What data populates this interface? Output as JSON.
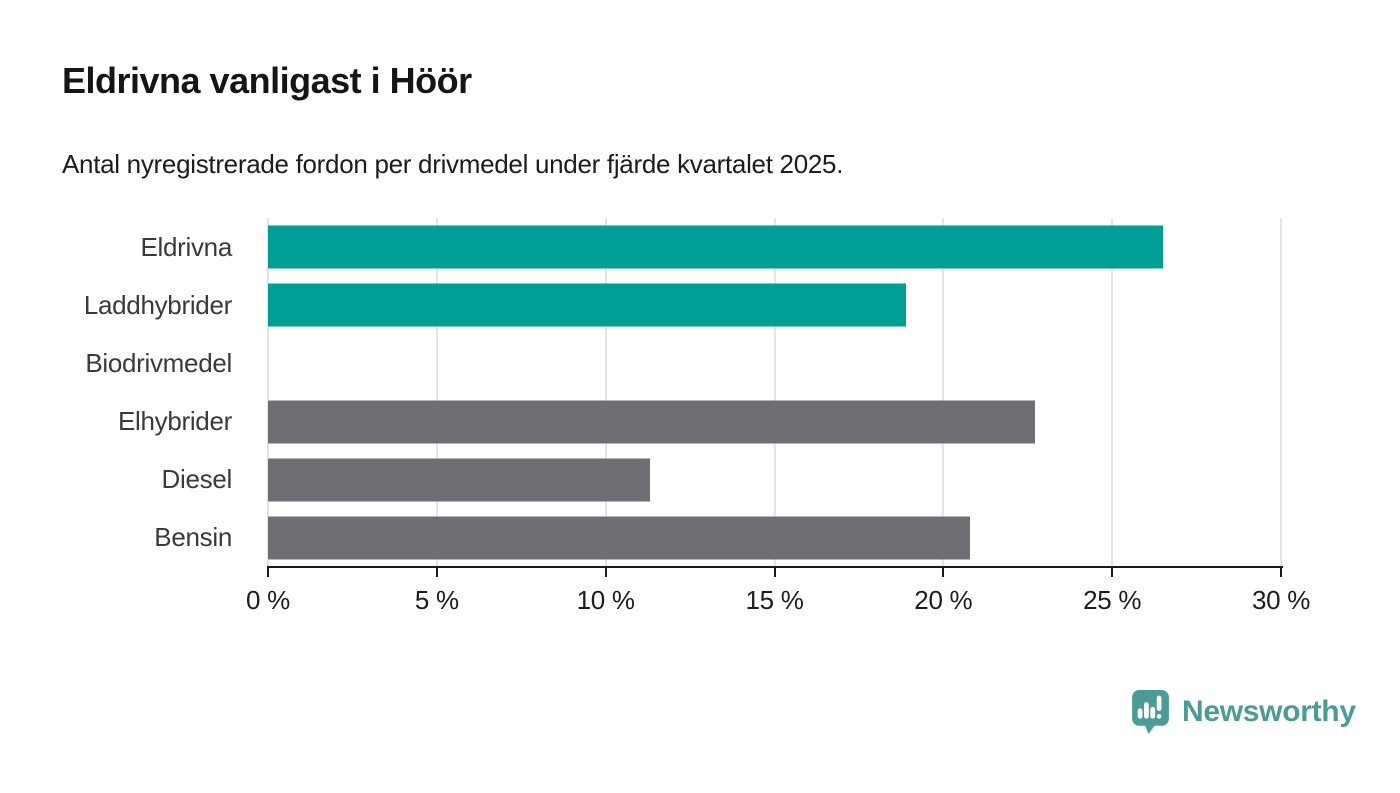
{
  "header": {
    "title": "Eldrivna vanligast i Höör",
    "subtitle": "Antal nyregistrerade fordon per drivmedel under fjärde kvartalet 2025."
  },
  "chart_data": {
    "type": "bar",
    "orientation": "horizontal",
    "title": "Eldrivna vanligast i Höör",
    "subtitle": "Antal nyregistrerade fordon per drivmedel under fjärde kvartalet 2025.",
    "categories": [
      "Eldrivna",
      "Laddhybrider",
      "Biodrivmedel",
      "Elhybrider",
      "Diesel",
      "Bensin"
    ],
    "values": [
      26.5,
      18.9,
      0,
      22.7,
      11.3,
      20.8
    ],
    "unit": "%",
    "bar_colors": [
      "#009e94",
      "#009e94",
      "#009e94",
      "#6e6e73",
      "#6e6e73",
      "#6e6e73"
    ],
    "xlabel": "",
    "ylabel": "",
    "xlim": [
      0,
      30
    ],
    "x_ticks": [
      0,
      5,
      10,
      15,
      20,
      25,
      30
    ],
    "x_tick_labels": [
      "0 %",
      "5 %",
      "10 %",
      "15 %",
      "20 %",
      "25 %",
      "30 %"
    ],
    "grid": "vertical",
    "legend": "none"
  },
  "colors": {
    "highlight_teal": "#009e94",
    "neutral_gray": "#6e6e73",
    "gridline": "#e4e4e4",
    "axis": "#1a1a1a",
    "brand_teal": "#4c9b95"
  },
  "footer": {
    "brand": "Newsworthy",
    "logo_icon": "newsworthy-pin-barchart-icon"
  }
}
